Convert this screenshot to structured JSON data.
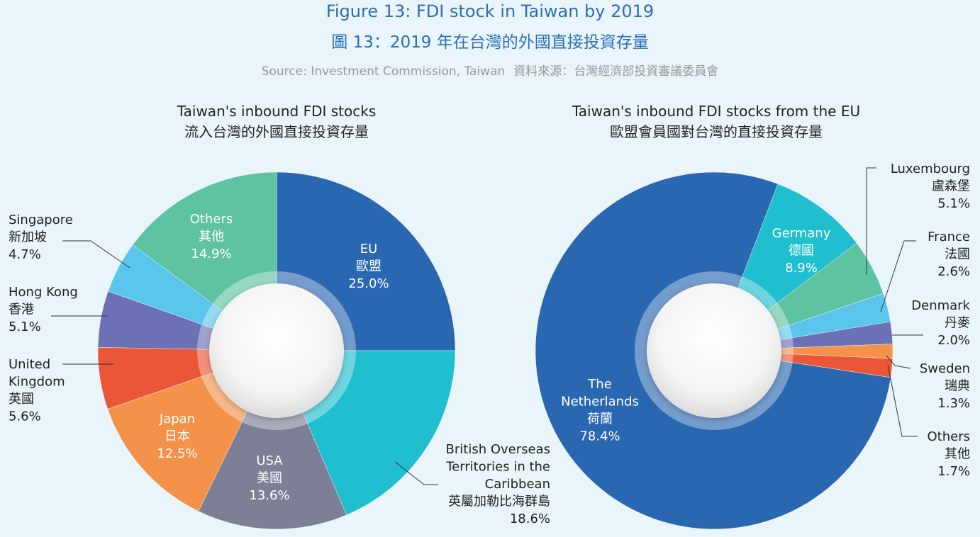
{
  "header": {
    "title_en": "Figure 13: FDI stock in Taiwan by 2019",
    "title_zh": "圖 13：2019 年在台灣的外國直接投資存量",
    "source_en": "Source: Investment Commission, Taiwan",
    "source_zh": "資料來源：台灣經濟部投資審議委員會"
  },
  "chart_data": [
    {
      "type": "pie",
      "variant": "donut",
      "title_en": "Taiwan's inbound FDI stocks",
      "title_zh": "流入台灣的外國直接投資存量",
      "slices": [
        {
          "label_en": "EU",
          "label_zh": "歐盟",
          "value": 25.0,
          "pct": "25.0%",
          "color": "#2a67b1"
        },
        {
          "label_en": "British Overseas Territories in the Caribbean",
          "label_zh": "英屬加勒比海群島",
          "value": 18.6,
          "pct": "18.6%",
          "color": "#1fbfcf"
        },
        {
          "label_en": "USA",
          "label_zh": "美國",
          "value": 13.6,
          "pct": "13.6%",
          "color": "#7c7f95"
        },
        {
          "label_en": "Japan",
          "label_zh": "日本",
          "value": 12.5,
          "pct": "12.5%",
          "color": "#f5924a"
        },
        {
          "label_en": "United Kingdom",
          "label_zh": "英國",
          "value": 5.6,
          "pct": "5.6%",
          "color": "#ea5636"
        },
        {
          "label_en": "Hong Kong",
          "label_zh": "香港",
          "value": 5.1,
          "pct": "5.1%",
          "color": "#6c70b5"
        },
        {
          "label_en": "Singapore",
          "label_zh": "新加坡",
          "value": 4.7,
          "pct": "4.7%",
          "color": "#5bc6ec"
        },
        {
          "label_en": "Others",
          "label_zh": "其他",
          "value": 14.9,
          "pct": "14.9%",
          "color": "#5ec3a1"
        }
      ]
    },
    {
      "type": "pie",
      "variant": "donut",
      "title_en": "Taiwan's inbound FDI stocks from the EU",
      "title_zh": "歐盟會員國對台灣的直接投資存量",
      "slices": [
        {
          "label_en": "Germany",
          "label_zh": "德國",
          "value": 8.9,
          "pct": "8.9%",
          "color": "#1fbfcf"
        },
        {
          "label_en": "Luxembourg",
          "label_zh": "盧森堡",
          "value": 5.1,
          "pct": "5.1%",
          "color": "#5ec3a1"
        },
        {
          "label_en": "France",
          "label_zh": "法國",
          "value": 2.6,
          "pct": "2.6%",
          "color": "#5bc6ec"
        },
        {
          "label_en": "Denmark",
          "label_zh": "丹麥",
          "value": 2.0,
          "pct": "2.0%",
          "color": "#6c70b5"
        },
        {
          "label_en": "Sweden",
          "label_zh": "瑞典",
          "value": 1.3,
          "pct": "1.3%",
          "color": "#f5924a"
        },
        {
          "label_en": "Others",
          "label_zh": "其他",
          "value": 1.7,
          "pct": "1.7%",
          "color": "#ea5636"
        },
        {
          "label_en": "The Netherlands",
          "label_zh": "荷蘭",
          "value": 78.4,
          "pct": "78.4%",
          "color": "#2a67b1"
        }
      ]
    }
  ]
}
